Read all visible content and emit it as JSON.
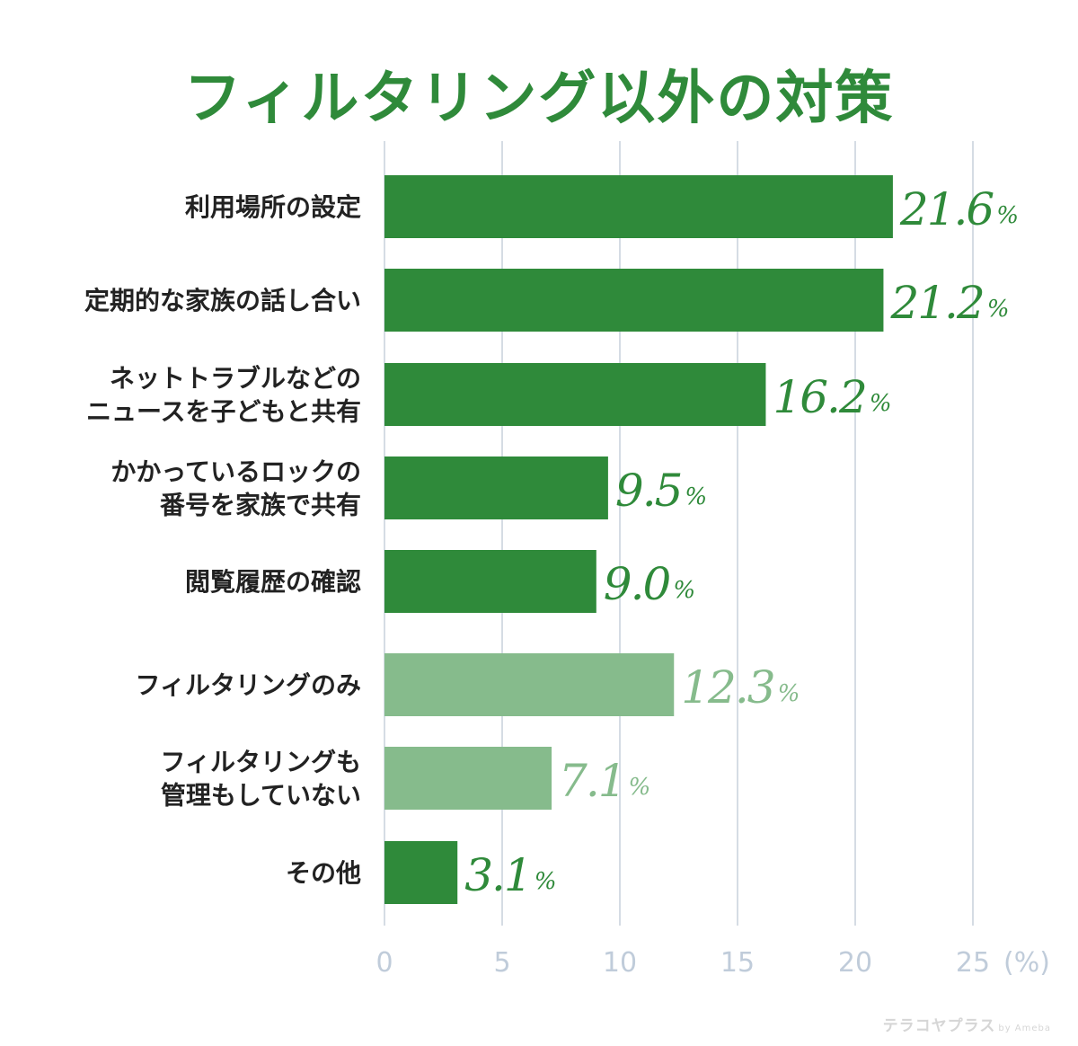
{
  "title": "フィルタリング以外の対策",
  "watermark": {
    "brand": "テラコヤプラス",
    "by": "by Ameba"
  },
  "colors": {
    "title": "#2f8a3a",
    "bar_dark": "#2f8a3a",
    "bar_light": "#86bb8c",
    "grid": "#c7d0dc",
    "tick": "#c0ccda",
    "label": "#222222"
  },
  "chart_data": {
    "type": "bar",
    "orientation": "horizontal",
    "unit": "(%)",
    "xlim": [
      0,
      25
    ],
    "xticks": [
      "0",
      "5",
      "10",
      "15",
      "20",
      "25"
    ],
    "grid": true,
    "categories": [
      [
        "利用場所の設定"
      ],
      [
        "定期的な家族の話し合い"
      ],
      [
        "ネットトラブルなどの",
        "ニュースを子どもと共有"
      ],
      [
        "かかっているロックの",
        "番号を家族で共有"
      ],
      [
        "閲覧履歴の確認"
      ],
      [
        "フィルタリングのみ"
      ],
      [
        "フィルタリングも",
        "管理もしていない"
      ],
      [
        "その他"
      ]
    ],
    "values": [
      21.6,
      21.2,
      16.2,
      9.5,
      9.0,
      12.3,
      7.1,
      3.1
    ],
    "value_labels": [
      "21.6",
      "21.2",
      "16.2",
      "9.5",
      "9.0",
      "12.3",
      "7.1",
      "3.1"
    ],
    "percent_sign": "%",
    "bar_shade": [
      "dark",
      "dark",
      "dark",
      "dark",
      "dark",
      "light",
      "light",
      "dark"
    ]
  }
}
